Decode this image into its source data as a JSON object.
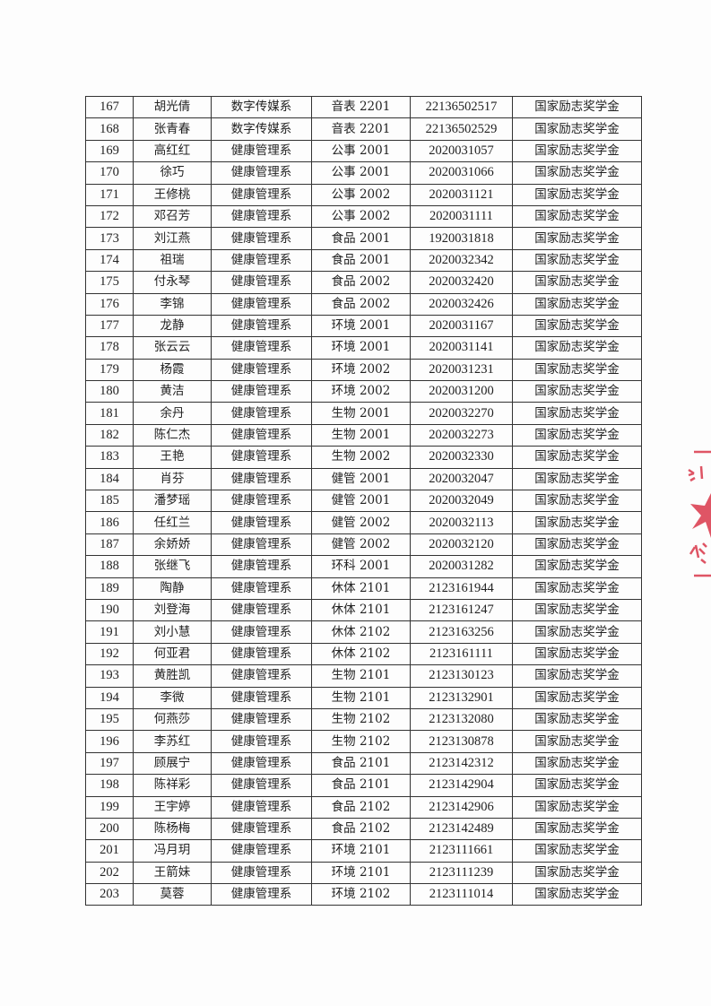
{
  "table": {
    "rows": [
      [
        "167",
        "胡光倩",
        "数字传媒系",
        "音表 2201",
        "22136502517",
        "国家励志奖学金"
      ],
      [
        "168",
        "张青春",
        "数字传媒系",
        "音表 2201",
        "22136502529",
        "国家励志奖学金"
      ],
      [
        "169",
        "高红红",
        "健康管理系",
        "公事 2001",
        "2020031057",
        "国家励志奖学金"
      ],
      [
        "170",
        "徐巧",
        "健康管理系",
        "公事 2001",
        "2020031066",
        "国家励志奖学金"
      ],
      [
        "171",
        "王修桃",
        "健康管理系",
        "公事 2002",
        "2020031121",
        "国家励志奖学金"
      ],
      [
        "172",
        "邓召芳",
        "健康管理系",
        "公事 2002",
        "2020031111",
        "国家励志奖学金"
      ],
      [
        "173",
        "刘江燕",
        "健康管理系",
        "食品 2001",
        "1920031818",
        "国家励志奖学金"
      ],
      [
        "174",
        "祖瑞",
        "健康管理系",
        "食品 2001",
        "2020032342",
        "国家励志奖学金"
      ],
      [
        "175",
        "付永琴",
        "健康管理系",
        "食品 2002",
        "2020032420",
        "国家励志奖学金"
      ],
      [
        "176",
        "李锦",
        "健康管理系",
        "食品 2002",
        "2020032426",
        "国家励志奖学金"
      ],
      [
        "177",
        "龙静",
        "健康管理系",
        "环境 2001",
        "2020031167",
        "国家励志奖学金"
      ],
      [
        "178",
        "张云云",
        "健康管理系",
        "环境 2001",
        "2020031141",
        "国家励志奖学金"
      ],
      [
        "179",
        "杨霞",
        "健康管理系",
        "环境 2002",
        "2020031231",
        "国家励志奖学金"
      ],
      [
        "180",
        "黄洁",
        "健康管理系",
        "环境 2002",
        "2020031200",
        "国家励志奖学金"
      ],
      [
        "181",
        "余丹",
        "健康管理系",
        "生物 2001",
        "2020032270",
        "国家励志奖学金"
      ],
      [
        "182",
        "陈仁杰",
        "健康管理系",
        "生物 2001",
        "2020032273",
        "国家励志奖学金"
      ],
      [
        "183",
        "王艳",
        "健康管理系",
        "生物 2002",
        "2020032330",
        "国家励志奖学金"
      ],
      [
        "184",
        "肖芬",
        "健康管理系",
        "健管 2001",
        "2020032047",
        "国家励志奖学金"
      ],
      [
        "185",
        "潘梦瑶",
        "健康管理系",
        "健管 2001",
        "2020032049",
        "国家励志奖学金"
      ],
      [
        "186",
        "任红兰",
        "健康管理系",
        "健管 2002",
        "2020032113",
        "国家励志奖学金"
      ],
      [
        "187",
        "余娇娇",
        "健康管理系",
        "健管 2002",
        "2020032120",
        "国家励志奖学金"
      ],
      [
        "188",
        "张继飞",
        "健康管理系",
        "环科 2001",
        "2020031282",
        "国家励志奖学金"
      ],
      [
        "189",
        "陶静",
        "健康管理系",
        "休体 2101",
        "2123161944",
        "国家励志奖学金"
      ],
      [
        "190",
        "刘登海",
        "健康管理系",
        "休体 2101",
        "2123161247",
        "国家励志奖学金"
      ],
      [
        "191",
        "刘小慧",
        "健康管理系",
        "休体 2102",
        "2123163256",
        "国家励志奖学金"
      ],
      [
        "192",
        "何亚君",
        "健康管理系",
        "休体 2102",
        "2123161111",
        "国家励志奖学金"
      ],
      [
        "193",
        "黄胜凯",
        "健康管理系",
        "生物 2101",
        "2123130123",
        "国家励志奖学金"
      ],
      [
        "194",
        "李微",
        "健康管理系",
        "生物 2101",
        "2123132901",
        "国家励志奖学金"
      ],
      [
        "195",
        "何燕莎",
        "健康管理系",
        "生物 2102",
        "2123132080",
        "国家励志奖学金"
      ],
      [
        "196",
        "李苏红",
        "健康管理系",
        "生物 2102",
        "2123130878",
        "国家励志奖学金"
      ],
      [
        "197",
        "顾展宁",
        "健康管理系",
        "食品 2101",
        "2123142312",
        "国家励志奖学金"
      ],
      [
        "198",
        "陈祥彩",
        "健康管理系",
        "食品 2101",
        "2123142904",
        "国家励志奖学金"
      ],
      [
        "199",
        "王宇婷",
        "健康管理系",
        "食品 2102",
        "2123142906",
        "国家励志奖学金"
      ],
      [
        "200",
        "陈杨梅",
        "健康管理系",
        "食品 2102",
        "2123142489",
        "国家励志奖学金"
      ],
      [
        "201",
        "冯月玥",
        "健康管理系",
        "环境 2101",
        "2123111661",
        "国家励志奖学金"
      ],
      [
        "202",
        "王箭妹",
        "健康管理系",
        "环境 2101",
        "2123111239",
        "国家励志奖学金"
      ],
      [
        "203",
        "莫蓉",
        "健康管理系",
        "环境 2102",
        "2123111014",
        "国家励志奖学金"
      ]
    ]
  },
  "seal": {
    "color": "#d9374a",
    "icon": "red-star-seal"
  }
}
